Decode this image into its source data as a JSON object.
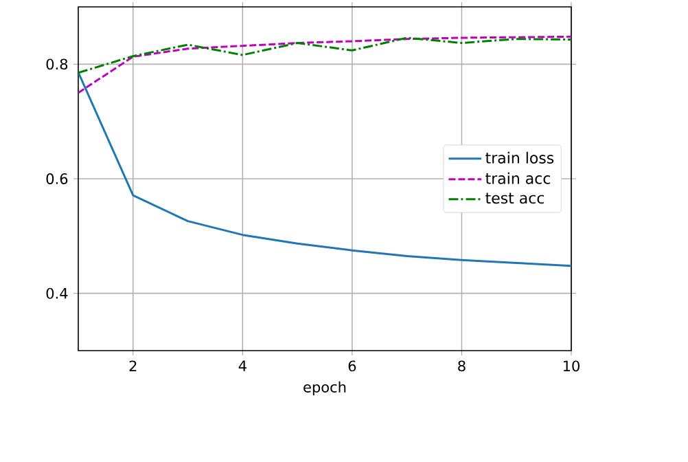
{
  "chart_data": {
    "type": "line",
    "xlabel": "epoch",
    "x": [
      1,
      2,
      3,
      4,
      5,
      6,
      7,
      8,
      9,
      10
    ],
    "series": [
      {
        "name": "train loss",
        "color": "#1f77b4",
        "line_style": "solid",
        "values": [
          0.786,
          0.571,
          0.526,
          0.502,
          0.487,
          0.475,
          0.465,
          0.458,
          0.453,
          0.448
        ]
      },
      {
        "name": "train acc",
        "color": "#bf00bf",
        "line_style": "dashed",
        "values": [
          0.75,
          0.813,
          0.827,
          0.832,
          0.837,
          0.84,
          0.844,
          0.846,
          0.847,
          0.848
        ]
      },
      {
        "name": "test acc",
        "color": "#008000",
        "line_style": "dashdot",
        "values": [
          0.785,
          0.814,
          0.834,
          0.816,
          0.837,
          0.824,
          0.846,
          0.837,
          0.844,
          0.843
        ]
      }
    ],
    "xlim": [
      1,
      10
    ],
    "ylim": [
      0.3,
      0.9
    ],
    "xticks": [
      2,
      4,
      6,
      8,
      10
    ],
    "yticks": [
      0.4,
      0.6,
      0.8
    ],
    "grid": true,
    "legend": "right",
    "marker": "none"
  }
}
